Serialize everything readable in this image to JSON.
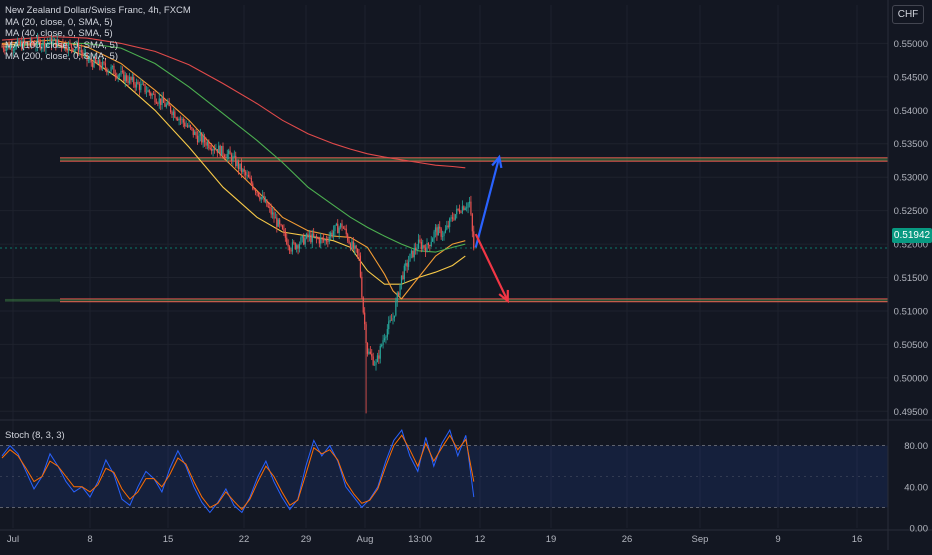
{
  "header": {
    "title": "New Zealand Dollar/Swiss Franc, 4h, FXCM",
    "currency": "CHF"
  },
  "indicators": [
    {
      "label": "MA (20, close, 0, SMA, 5)",
      "color": "#f7c948"
    },
    {
      "label": "MA (40, close, 0, SMA, 5)",
      "color": "#f39c34"
    },
    {
      "label": "MA (100, close, 0, SMA, 5)",
      "color": "#4caf50"
    },
    {
      "label": "MA (200, close, 0, SMA, 5)",
      "color": "#e04a4a"
    }
  ],
  "stoch_label": "Stoch (8, 3, 3)",
  "last_price": "0.51942",
  "colors": {
    "background": "#131722",
    "up": "#26a69a",
    "down": "#ef5350",
    "grid": "#1e222d",
    "axis_text": "#b2b5be",
    "sr_line": "#e04a4a",
    "arrow_up": "#2962ff",
    "arrow_down": "#f23645",
    "stoch_k": "#2962ff",
    "stoch_d": "#ff6d00"
  },
  "chart_data": [
    {
      "type": "candlestick",
      "title": "New Zealand Dollar/Swiss Franc, 4h, FXCM",
      "y_ticks": [
        "0.55000",
        "0.54500",
        "0.54000",
        "0.53500",
        "0.53000",
        "0.52500",
        "0.52000",
        "0.51500",
        "0.51000",
        "0.50500",
        "0.50000",
        "0.49500"
      ],
      "x_ticks": [
        "Jul",
        "8",
        "15",
        "22",
        "29",
        "Aug",
        "13:00",
        "12",
        "19",
        "26",
        "Sep",
        "9",
        "16"
      ],
      "ylim": [
        0.494,
        0.5535
      ],
      "grid": true,
      "close_path": [
        [
          0,
          0.5495
        ],
        [
          6,
          0.5502
        ],
        [
          9,
          0.5493
        ],
        [
          10,
          0.5475
        ],
        [
          13,
          0.546
        ],
        [
          17,
          0.543
        ],
        [
          20,
          0.54
        ],
        [
          23,
          0.536
        ],
        [
          27,
          0.533
        ],
        [
          30,
          0.528
        ],
        [
          32,
          0.524
        ],
        [
          34,
          0.5195
        ],
        [
          36,
          0.521
        ],
        [
          38,
          0.5205
        ],
        [
          39,
          0.522
        ],
        [
          40,
          0.5228
        ],
        [
          41,
          0.52
        ],
        [
          42,
          0.518
        ],
        [
          42.5,
          0.51
        ],
        [
          43,
          0.504
        ],
        [
          44,
          0.502
        ],
        [
          45,
          0.5065
        ],
        [
          46,
          0.509
        ],
        [
          47,
          0.515
        ],
        [
          48,
          0.518
        ],
        [
          49,
          0.52
        ],
        [
          50,
          0.5195
        ],
        [
          51,
          0.522
        ],
        [
          52,
          0.5215
        ],
        [
          53,
          0.524
        ],
        [
          54,
          0.5255
        ],
        [
          55,
          0.5262
        ],
        [
          55.5,
          0.5194
        ]
      ],
      "wick_extremes": {
        "high": 0.5507,
        "low": 0.4947
      },
      "moving_averages": [
        {
          "name": "MA 20",
          "points": [
            [
              0,
              0.5498
            ],
            [
              6,
              0.55
            ],
            [
              10,
              0.548
            ],
            [
              14,
              0.5445
            ],
            [
              18,
              0.54
            ],
            [
              22,
              0.5345
            ],
            [
              26,
              0.5285
            ],
            [
              30,
              0.524
            ],
            [
              33,
              0.5218
            ],
            [
              36,
              0.5212
            ],
            [
              39,
              0.5205
            ],
            [
              41,
              0.5195
            ],
            [
              43,
              0.516
            ],
            [
              45,
              0.514
            ],
            [
              47,
              0.514
            ],
            [
              49,
              0.515
            ],
            [
              51,
              0.5158
            ],
            [
              53,
              0.5168
            ],
            [
              54.5,
              0.5182
            ]
          ]
        },
        {
          "name": "MA 40",
          "points": [
            [
              0,
              0.55
            ],
            [
              6,
              0.5505
            ],
            [
              10,
              0.5495
            ],
            [
              14,
              0.547
            ],
            [
              18,
              0.543
            ],
            [
              22,
              0.5385
            ],
            [
              26,
              0.533
            ],
            [
              30,
              0.528
            ],
            [
              33,
              0.524
            ],
            [
              36,
              0.522
            ],
            [
              39,
              0.5212
            ],
            [
              41,
              0.521
            ],
            [
              43,
              0.5195
            ],
            [
              45,
              0.5155
            ],
            [
              46,
              0.513
            ],
            [
              47,
              0.5118
            ],
            [
              49,
              0.515
            ],
            [
              51,
              0.5182
            ],
            [
              53,
              0.52
            ],
            [
              54.5,
              0.5205
            ]
          ]
        },
        {
          "name": "MA 100",
          "points": [
            [
              0,
              0.5495
            ],
            [
              6,
              0.55
            ],
            [
              10,
              0.55
            ],
            [
              14,
              0.5493
            ],
            [
              18,
              0.547
            ],
            [
              22,
              0.5435
            ],
            [
              26,
              0.5395
            ],
            [
              30,
              0.5355
            ],
            [
              33,
              0.5322
            ],
            [
              36,
              0.5285
            ],
            [
              39,
              0.5258
            ],
            [
              41,
              0.524
            ],
            [
              43,
              0.5225
            ],
            [
              45,
              0.5212
            ],
            [
              47,
              0.52
            ],
            [
              49,
              0.519
            ],
            [
              51,
              0.5188
            ],
            [
              53,
              0.5195
            ],
            [
              54.5,
              0.52
            ]
          ]
        },
        {
          "name": "MA 200",
          "points": [
            [
              0,
              0.5505
            ],
            [
              6,
              0.551
            ],
            [
              10,
              0.5508
            ],
            [
              14,
              0.55
            ],
            [
              18,
              0.5488
            ],
            [
              22,
              0.5468
            ],
            [
              26,
              0.544
            ],
            [
              30,
              0.541
            ],
            [
              33,
              0.5385
            ],
            [
              36,
              0.5365
            ],
            [
              39,
              0.535
            ],
            [
              41,
              0.5342
            ],
            [
              43,
              0.5335
            ],
            [
              45,
              0.533
            ],
            [
              47,
              0.5326
            ],
            [
              49,
              0.5322
            ],
            [
              51,
              0.5318
            ],
            [
              53,
              0.5316
            ],
            [
              54.5,
              0.5314
            ]
          ]
        }
      ],
      "horizontal_levels": [
        {
          "from": 0,
          "to": 1,
          "y": [
            0.5329,
            0.5324
          ]
        },
        {
          "from": 0,
          "to": 1,
          "y": [
            0.5118,
            0.5114
          ]
        }
      ],
      "projections": [
        {
          "direction": "up",
          "from": [
            55.5,
            0.5195
          ],
          "to": [
            58.5,
            0.533
          ]
        },
        {
          "direction": "down",
          "from": [
            55.5,
            0.5215
          ],
          "to": [
            59.5,
            0.5115
          ]
        }
      ]
    },
    {
      "type": "line",
      "title": "Stoch (8, 3, 3)",
      "y_ticks": [
        "80.00",
        "40.00",
        "0.00"
      ],
      "ylim": [
        0,
        100
      ],
      "bands": [
        80,
        20
      ],
      "series": [
        {
          "name": "%K",
          "values": [
            70,
            80,
            72,
            55,
            38,
            50,
            72,
            60,
            45,
            35,
            40,
            30,
            45,
            66,
            52,
            28,
            22,
            40,
            55,
            48,
            35,
            58,
            75,
            60,
            40,
            25,
            15,
            25,
            38,
            22,
            15,
            30,
            50,
            65,
            45,
            30,
            18,
            28,
            60,
            85,
            70,
            80,
            65,
            40,
            30,
            20,
            28,
            40,
            65,
            85,
            95,
            70,
            55,
            88,
            60,
            82,
            95,
            70,
            90,
            30
          ]
        },
        {
          "name": "%D",
          "values": [
            68,
            76,
            70,
            58,
            45,
            50,
            65,
            60,
            50,
            40,
            40,
            35,
            42,
            58,
            54,
            38,
            28,
            35,
            48,
            48,
            40,
            52,
            68,
            62,
            45,
            30,
            20,
            24,
            35,
            26,
            18,
            28,
            45,
            60,
            50,
            35,
            22,
            27,
            52,
            78,
            72,
            76,
            66,
            45,
            33,
            24,
            27,
            38,
            60,
            80,
            90,
            76,
            60,
            82,
            65,
            78,
            90,
            76,
            86,
            45
          ]
        }
      ]
    }
  ]
}
